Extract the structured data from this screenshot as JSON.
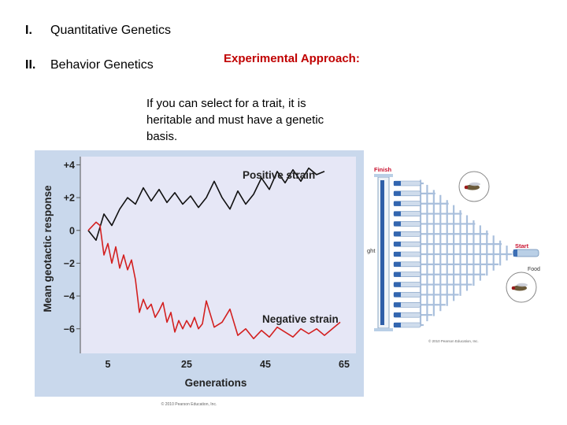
{
  "outline": [
    {
      "num": "I.",
      "text": "Quantitative Genetics"
    },
    {
      "num": "II.",
      "text": "Behavior Genetics"
    }
  ],
  "experimental": {
    "title": "Experimental Approach:",
    "body": "If you can select for a trait, it is heritable and must have a genetic basis."
  },
  "chart_data": {
    "type": "line",
    "title": "",
    "xlabel": "Generations",
    "ylabel": "Mean geotactic response",
    "xlim": [
      -2,
      68
    ],
    "ylim": [
      -7.5,
      4.5
    ],
    "x_ticks": [
      "5",
      "25",
      "45",
      "65"
    ],
    "y_ticks": [
      "+4",
      "+2",
      "0",
      "−2",
      "−4",
      "−6"
    ],
    "series": [
      {
        "name": "Positive strain",
        "color": "#111111",
        "x": [
          0,
          2,
          4,
          6,
          8,
          10,
          12,
          14,
          16,
          18,
          20,
          22,
          24,
          26,
          28,
          30,
          32,
          34,
          36,
          38,
          40,
          42,
          44,
          46,
          48,
          50,
          52,
          54,
          56,
          58,
          60
        ],
        "y": [
          0.0,
          -0.6,
          1.0,
          0.3,
          1.3,
          2.0,
          1.6,
          2.6,
          1.8,
          2.5,
          1.7,
          2.3,
          1.6,
          2.1,
          1.4,
          2.0,
          3.0,
          2.0,
          1.3,
          2.4,
          1.6,
          2.2,
          3.2,
          2.5,
          3.6,
          2.9,
          3.7,
          3.0,
          3.8,
          3.4,
          3.6
        ]
      },
      {
        "name": "Negative strain",
        "color": "#d32020",
        "x": [
          0,
          2,
          3,
          4,
          5,
          6,
          7,
          8,
          9,
          10,
          11,
          12,
          13,
          14,
          15,
          16,
          17,
          18,
          19,
          20,
          21,
          22,
          23,
          24,
          25,
          26,
          27,
          28,
          29,
          30,
          32,
          34,
          36,
          38,
          40,
          42,
          44,
          46,
          48,
          50,
          52,
          54,
          56,
          58,
          60,
          62,
          64
        ],
        "y": [
          0.0,
          0.5,
          0.3,
          -1.5,
          -0.8,
          -2.0,
          -1.0,
          -2.3,
          -1.5,
          -2.4,
          -1.8,
          -3.0,
          -5.0,
          -4.2,
          -4.8,
          -4.5,
          -5.3,
          -4.9,
          -4.4,
          -5.6,
          -5.0,
          -6.2,
          -5.5,
          -6.0,
          -5.5,
          -5.9,
          -5.3,
          -6.0,
          -5.7,
          -4.3,
          -5.9,
          -5.6,
          -4.8,
          -6.4,
          -6.0,
          -6.6,
          -6.1,
          -6.5,
          -5.9,
          -6.2,
          -6.5,
          -6.0,
          -6.3,
          -6.0,
          -6.4,
          -6.0,
          -5.6
        ]
      }
    ],
    "legend_placement": "inline-labels",
    "grid": false,
    "footer_credit": "© 2010 Pearson Education, Inc."
  },
  "maze": {
    "finish_label": "Finish",
    "start_label": "Start",
    "food_label": "Food",
    "side_label": "ght",
    "credit": "© 2010 Pearson Education, Inc."
  }
}
